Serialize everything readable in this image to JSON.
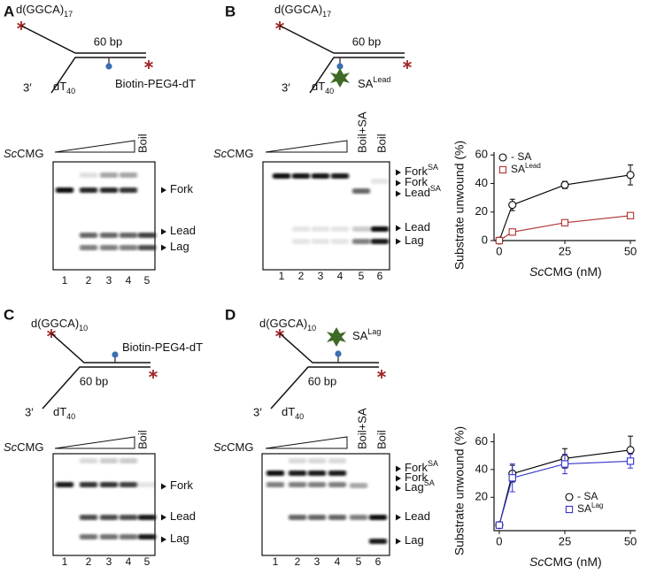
{
  "figure": {
    "panels": [
      {
        "label": "A",
        "strand": {
          "text": "d(GGCA)",
          "sub": 17
        },
        "bp": "60 bp",
        "end": "3′",
        "tail": {
          "text": "dT",
          "sub": 40
        },
        "mod": {
          "text": "Biotin-PEG4-dT"
        },
        "enzyme": {
          "italic": "Sc",
          "text": "CMG"
        },
        "lane_headers": [
          "Boil"
        ],
        "bands": [
          {
            "text": "Fork"
          },
          {
            "text": "Lead"
          },
          {
            "text": "Lag"
          }
        ],
        "lanes": [
          1,
          2,
          3,
          4,
          5
        ]
      },
      {
        "label": "B",
        "strand": {
          "text": "d(GGCA)",
          "sub": 17
        },
        "bp": "60 bp",
        "end": "3′",
        "tail": {
          "text": "dT",
          "sub": 40
        },
        "mod": {
          "text": "SA",
          "sup": "Lead"
        },
        "enzyme": {
          "italic": "Sc",
          "text": "CMG"
        },
        "lane_headers": [
          "Boil+SA",
          "Boil"
        ],
        "bands": [
          {
            "text": "Fork",
            "sup": "SA"
          },
          {
            "text": "Fork"
          },
          {
            "text": "Lead",
            "sup": "SA"
          },
          {
            "text": "Lead"
          },
          {
            "text": "Lag"
          }
        ],
        "lanes": [
          1,
          2,
          3,
          4,
          5,
          6
        ]
      },
      {
        "label": "C",
        "strand": {
          "text": "d(GGCA)",
          "sub": 10
        },
        "bp": "60 bp",
        "end": "3′",
        "tail": {
          "text": "dT",
          "sub": 40
        },
        "mod": {
          "text": "Biotin-PEG4-dT"
        },
        "enzyme": {
          "italic": "Sc",
          "text": "CMG"
        },
        "lane_headers": [
          "Boil"
        ],
        "bands": [
          {
            "text": "Fork"
          },
          {
            "text": "Lead"
          },
          {
            "text": "Lag"
          }
        ],
        "lanes": [
          1,
          2,
          3,
          4,
          5
        ]
      },
      {
        "label": "D",
        "strand": {
          "text": "d(GGCA)",
          "sub": 10
        },
        "bp": "60 bp",
        "end": "3′",
        "tail": {
          "text": "dT",
          "sub": 40
        },
        "mod": {
          "text": "SA",
          "sup": "Lag"
        },
        "enzyme": {
          "italic": "Sc",
          "text": "CMG"
        },
        "lane_headers": [
          "Boil+SA",
          "Boil"
        ],
        "bands": [
          {
            "text": "Fork",
            "sup": "SA"
          },
          {
            "text": "Fork"
          },
          {
            "text": "Lag",
            "sup": "SA"
          },
          {
            "text": "Lead"
          },
          {
            "text": "Lag"
          }
        ],
        "lanes": [
          1,
          2,
          3,
          4,
          5,
          6
        ]
      }
    ]
  },
  "chart_data": [
    {
      "type": "line",
      "xlabel": {
        "italic": "Sc",
        "text": "CMG (nM)"
      },
      "ylabel": "Substrate unwound (%)",
      "x": [
        0,
        5,
        25,
        50
      ],
      "xlim": [
        -2,
        52
      ],
      "xticks": [
        0,
        25,
        50
      ],
      "ylim": [
        0,
        62
      ],
      "yticks": [
        0,
        20,
        40,
        60
      ],
      "legend": "upper left",
      "series": [
        {
          "name": "- SA",
          "color": "#000000",
          "marker": "circle",
          "values": [
            0,
            25,
            39,
            46
          ],
          "errors": [
            0,
            4,
            2.5,
            7
          ]
        },
        {
          "name": "SA",
          "name_sup": "Lead",
          "color": "#b03030",
          "marker": "square",
          "values": [
            0,
            6,
            12.5,
            17.5
          ],
          "errors": [
            0,
            0.5,
            0.5,
            0.5
          ]
        }
      ]
    },
    {
      "type": "line",
      "xlabel": {
        "italic": "Sc",
        "text": "CMG (nM)"
      },
      "ylabel": "Substrate unwound (%)",
      "x": [
        0,
        5,
        25,
        50
      ],
      "xlim": [
        -2,
        52
      ],
      "xticks": [
        0,
        25,
        50
      ],
      "ylim": [
        -4,
        66
      ],
      "yticks": [
        20,
        40,
        60
      ],
      "legend": "lower right",
      "series": [
        {
          "name": "- SA",
          "color": "#000000",
          "marker": "circle",
          "values": [
            0,
            37,
            48,
            54
          ],
          "errors": [
            0,
            6,
            7,
            10
          ]
        },
        {
          "name": "SA",
          "name_sup": "Lag",
          "color": "#3333cc",
          "marker": "square",
          "values": [
            0,
            34,
            44,
            46
          ],
          "errors": [
            0,
            10,
            7,
            5
          ]
        }
      ]
    }
  ]
}
